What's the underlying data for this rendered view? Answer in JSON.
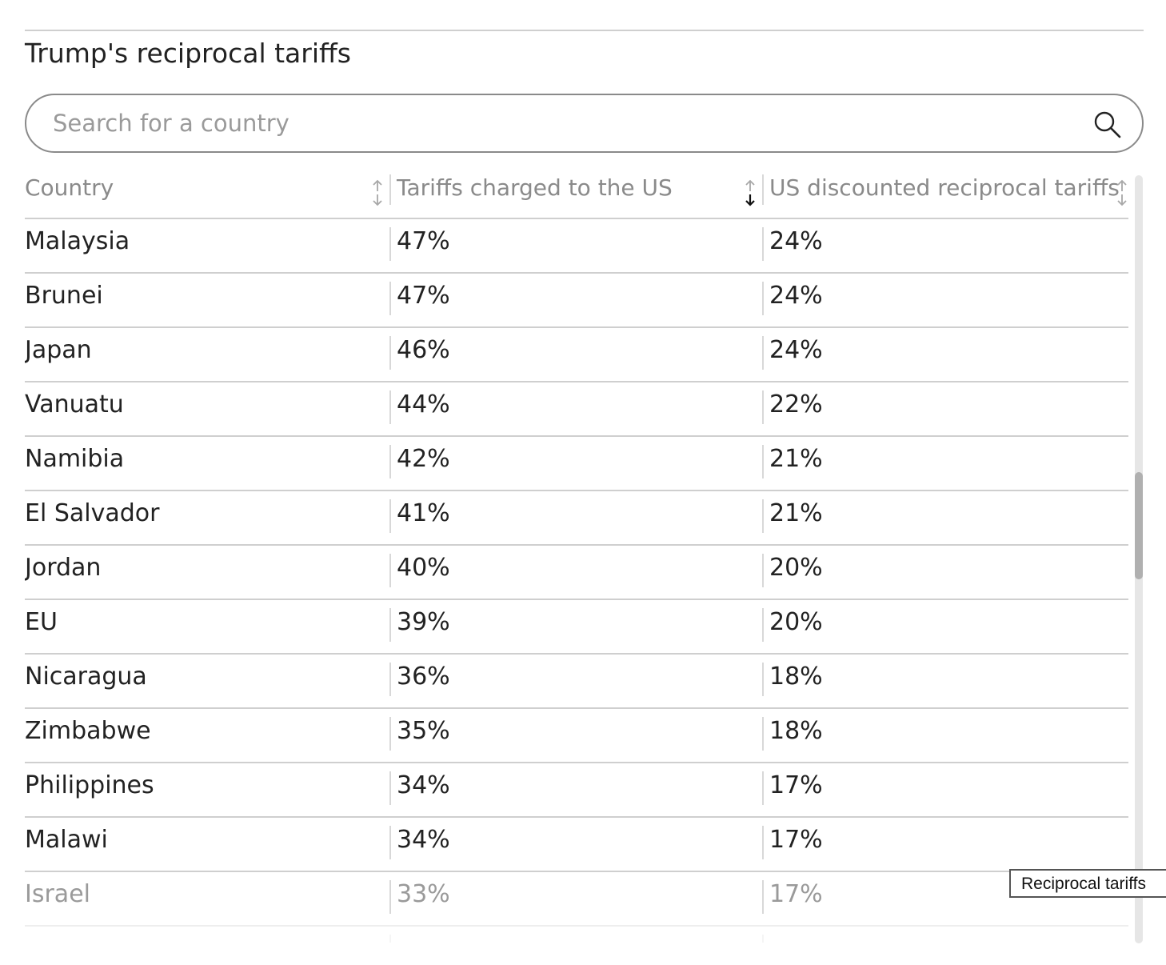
{
  "title": "Trump's reciprocal tariffs",
  "search": {
    "placeholder": "Search for a country",
    "value": "",
    "icon": "search-icon"
  },
  "table": {
    "columns": [
      {
        "label": "Country",
        "sort": "none"
      },
      {
        "label": "Tariffs charged to the US",
        "sort": "descending"
      },
      {
        "label": "US discounted reciprocal tariffs",
        "sort": "none"
      }
    ],
    "rows": [
      {
        "country": "Malaysia",
        "charged": "47%",
        "reciprocal": "24%"
      },
      {
        "country": "Brunei",
        "charged": "47%",
        "reciprocal": "24%"
      },
      {
        "country": "Japan",
        "charged": "46%",
        "reciprocal": "24%"
      },
      {
        "country": "Vanuatu",
        "charged": "44%",
        "reciprocal": "22%"
      },
      {
        "country": "Namibia",
        "charged": "42%",
        "reciprocal": "21%"
      },
      {
        "country": "El Salvador",
        "charged": "41%",
        "reciprocal": "21%"
      },
      {
        "country": "Jordan",
        "charged": "40%",
        "reciprocal": "20%"
      },
      {
        "country": "EU",
        "charged": "39%",
        "reciprocal": "20%"
      },
      {
        "country": "Nicaragua",
        "charged": "36%",
        "reciprocal": "18%"
      },
      {
        "country": "Zimbabwe",
        "charged": "35%",
        "reciprocal": "18%"
      },
      {
        "country": "Philippines",
        "charged": "34%",
        "reciprocal": "17%"
      },
      {
        "country": "Malawi",
        "charged": "34%",
        "reciprocal": "17%"
      },
      {
        "country": "Israel",
        "charged": "33%",
        "reciprocal": "17%"
      }
    ]
  },
  "tooltip": "Reciprocal tariffs",
  "colors": {
    "text": "#222222",
    "header_text": "#8a8a8a",
    "rule": "#cfcfcf",
    "faded_text": "#9a9a9a"
  }
}
